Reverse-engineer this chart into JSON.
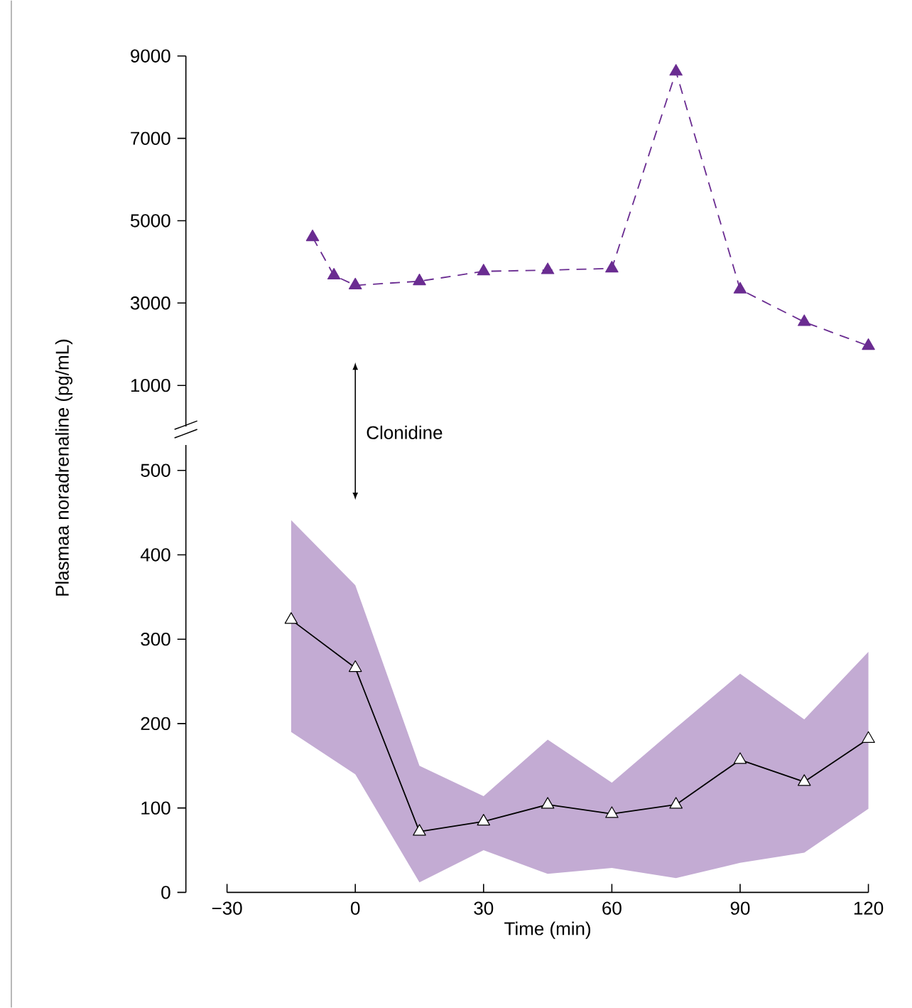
{
  "chart_data": [
    {
      "type": "line",
      "ylim": [
        0,
        9000
      ],
      "yticks": [
        1000,
        3000,
        5000,
        7000,
        9000
      ],
      "xlim": [
        -30,
        120
      ],
      "tick_labels": "y",
      "marker": "triangle",
      "line_style": "dashed",
      "series": [
        {
          "color": "#6a2c91",
          "x": [
            -10,
            -5,
            0,
            15,
            30,
            45,
            60,
            75,
            90,
            105,
            120
          ],
          "values": [
            4600,
            3670,
            3430,
            3530,
            3770,
            3800,
            3840,
            8620,
            3330,
            2540,
            1960
          ]
        }
      ]
    },
    {
      "type": "line",
      "ylabel": "Plasmaa noradrenaline (pg/mL)",
      "xlabel": "Time (min)",
      "annotations": [
        "Clonidine"
      ],
      "ylim": [
        0,
        530
      ],
      "yticks": [
        0,
        100,
        200,
        300,
        400,
        500
      ],
      "xlim": [
        -30,
        120
      ],
      "xticks": [
        {
          "value": -30,
          "label": "−30"
        },
        0,
        30,
        60,
        90,
        120
      ],
      "marker": "triangle",
      "line_style": "solid",
      "series": [
        {
          "color": "#000000",
          "x": [
            -15,
            0,
            15,
            30,
            45,
            60,
            75,
            90,
            105,
            120
          ],
          "values": [
            323,
            266,
            72,
            84,
            104,
            93,
            104,
            157,
            131,
            182
          ],
          "upper": [
            441,
            364,
            150,
            114,
            181,
            130,
            195,
            259,
            205,
            285
          ],
          "lower": [
            190,
            140,
            12,
            50,
            22,
            29,
            17,
            35,
            47,
            99
          ]
        }
      ]
    }
  ]
}
